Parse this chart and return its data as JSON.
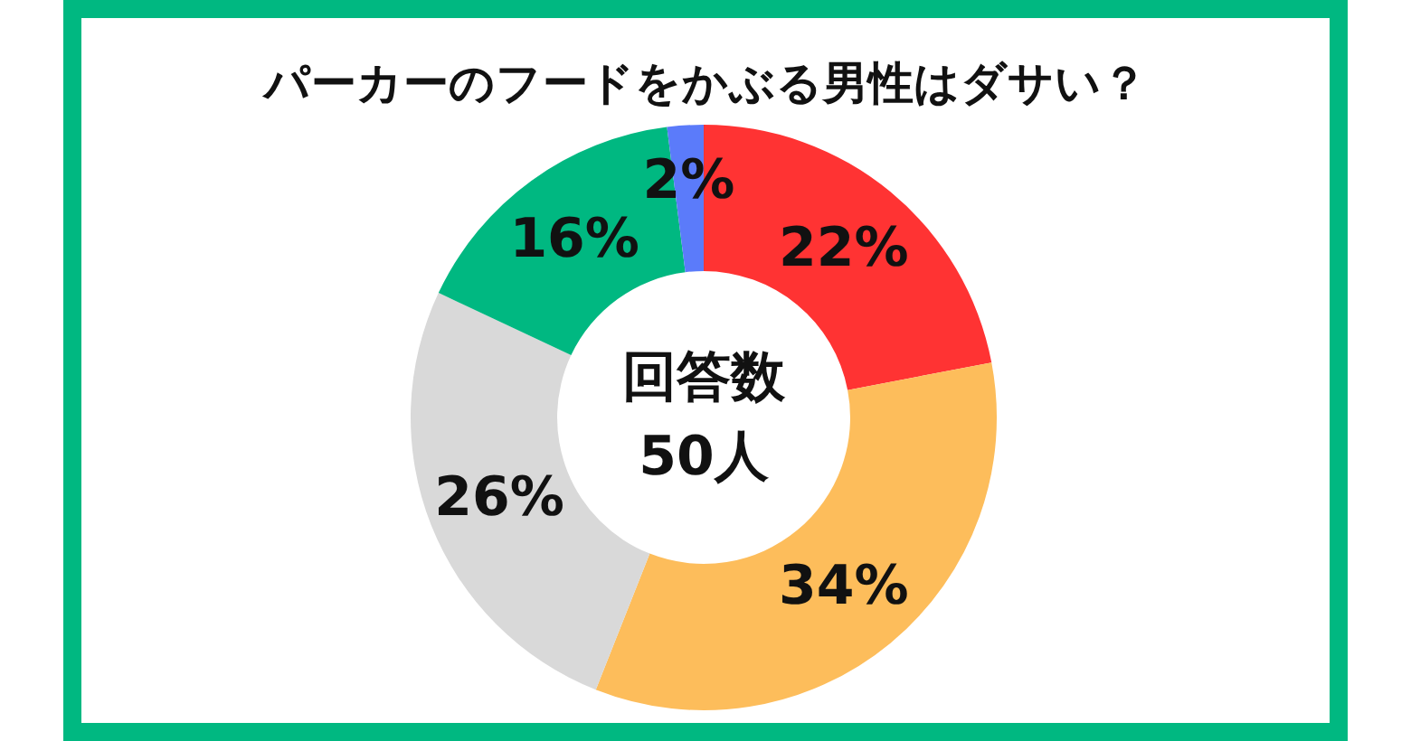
{
  "chart_data": {
    "type": "donut",
    "title": "パーカーのフードをかぶる男性はダサい？",
    "categories": [
      null,
      null,
      null,
      null,
      null
    ],
    "values": [
      22,
      34,
      26,
      16,
      2
    ],
    "colors": [
      "#ff3333",
      "#fdbd5b",
      "#d9d9d9",
      "#00b881",
      "#5b7bfa"
    ],
    "value_labels": [
      "22%",
      "34%",
      "26%",
      "16%",
      "2%"
    ],
    "annotations": [
      "回答数",
      "50人"
    ]
  }
}
